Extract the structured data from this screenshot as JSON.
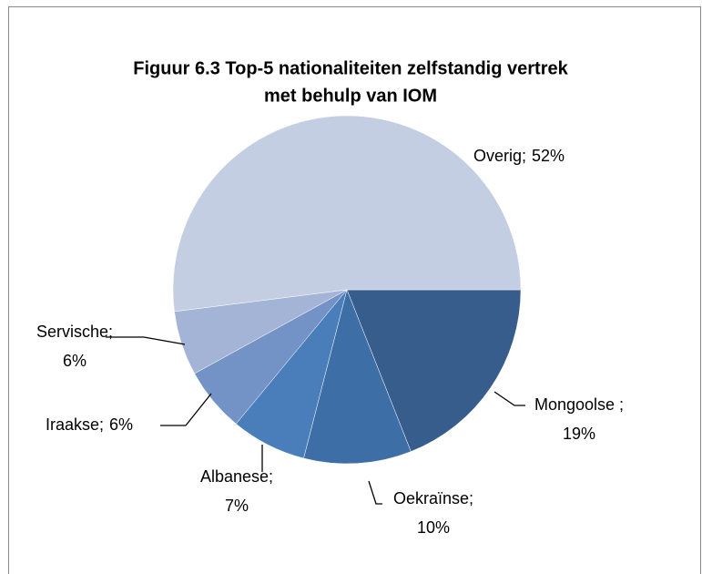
{
  "chart_data": {
    "type": "pie",
    "title": [
      "Figuur 6.3 Top-5 nationaliteiten zelfstandig vertrek",
      "met behulp van IOM"
    ],
    "categories": [
      "Mongoolse ;",
      "Oekraïnse;",
      "Albanese;",
      "Iraakse;",
      "Servische;",
      "Overig;"
    ],
    "values": [
      19,
      10,
      7,
      6,
      6,
      52
    ],
    "value_labels": [
      "19%",
      "10%",
      "7%",
      "6%",
      "6%",
      "52%"
    ],
    "colors": [
      "#375d8c",
      "#3e6ea6",
      "#4a7ebb",
      "#7393c7",
      "#a3b4d7",
      "#c3cee3"
    ]
  }
}
